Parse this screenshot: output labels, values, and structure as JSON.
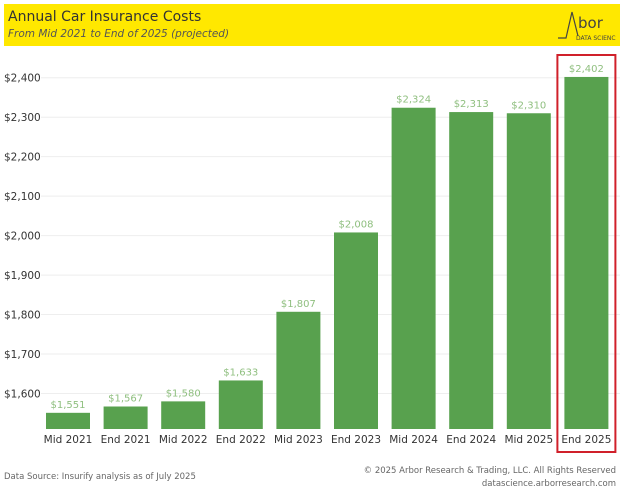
{
  "header": {
    "title": "Annual Car Insurance Costs",
    "subtitle": "From Mid 2021 to End of 2025 (projected)",
    "logo_text": "Arbor",
    "logo_subtext": "DATA SCIENCE",
    "background_color": "#ffe800"
  },
  "chart_data": {
    "type": "bar",
    "title": "Annual Car Insurance Costs",
    "subtitle": "From Mid 2021 to End of 2025 (projected)",
    "categories": [
      "Mid 2021",
      "End 2021",
      "Mid 2022",
      "End 2022",
      "Mid 2023",
      "End 2023",
      "Mid 2024",
      "End 2024",
      "Mid 2025",
      "End 2025"
    ],
    "values": [
      1551,
      1567,
      1580,
      1633,
      1807,
      2008,
      2324,
      2313,
      2310,
      2402
    ],
    "data_labels": [
      "$1,551",
      "$1,567",
      "$1,580",
      "$1,633",
      "$1,807",
      "$2,008",
      "$2,324",
      "$2,313",
      "$2,310",
      "$2,402"
    ],
    "y_ticks": [
      1600,
      1700,
      1800,
      1900,
      2000,
      2100,
      2200,
      2300,
      2400
    ],
    "y_tick_labels": [
      "$1,600",
      "$1,700",
      "$1,800",
      "$1,900",
      "$2,000",
      "$2,100",
      "$2,200",
      "$2,300",
      "$2,400"
    ],
    "ylim": [
      1510,
      2450
    ],
    "grid": true,
    "bar_color": "#58a14e",
    "label_color": "#8fbf7f",
    "highlight": {
      "category": "End 2025",
      "color": "#d0202a"
    }
  },
  "footer": {
    "source": "Data Source: Insurify analysis as of July 2025",
    "copyright": "© 2025 Arbor Research & Trading, LLC. All Rights Reserved",
    "website": "datascience.arborresearch.com"
  }
}
